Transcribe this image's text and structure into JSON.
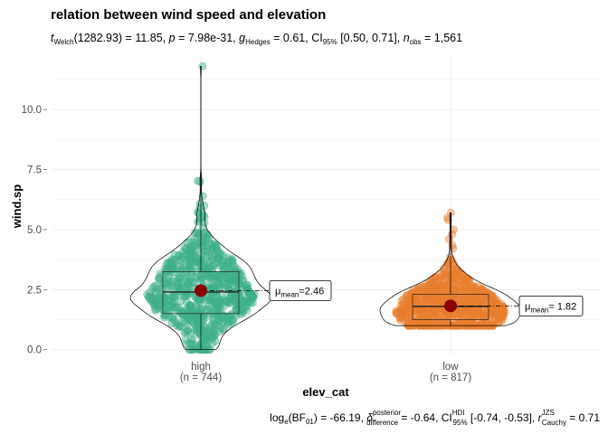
{
  "chart_data": {
    "type": "violin-box-scatter",
    "title": "relation between wind speed and elevation",
    "subtitle": {
      "t_prefix": "t",
      "t_sub": "Welch",
      "df_stat": "(1282.93) = 11.85, ",
      "p_label": "p",
      "p_value": " = 7.98e-31, ",
      "g_label": "g",
      "g_sub": "Hedges",
      "g_value": " = 0.61, CI",
      "ci_sub": "95%",
      "ci_value": " [0.50, 0.71], ",
      "n_label": "n",
      "n_sub": "obs",
      "n_value": " = 1,561"
    },
    "xlabel": "elev_cat",
    "ylabel": "wind.sp",
    "ylim": [
      -0.2,
      12.3
    ],
    "yticks": [
      0.0,
      2.5,
      5.0,
      7.5,
      10.0
    ],
    "ytick_labels": [
      "0.0",
      "2.5",
      "5.0",
      "7.5",
      "10.0"
    ],
    "grid": true,
    "categories": [
      {
        "name": "high",
        "n_label": "(n = 744)",
        "n": 744,
        "color": "#3fb08b",
        "box": {
          "q1": 1.5,
          "median": 2.4,
          "q3": 3.25,
          "whisker_low": 0.0,
          "whisker_high": 11.8
        },
        "mean": 2.46,
        "mean_label_prefix": "μ",
        "mean_label_sub": "mean",
        "mean_label_value": "=2.46",
        "outliers": [
          11.8,
          7.0,
          6.0,
          5.9,
          5.6,
          5.5
        ]
      },
      {
        "name": "low",
        "n_label": "(n = 817)",
        "n": 817,
        "color": "#e87f2e",
        "box": {
          "q1": 1.25,
          "median": 1.8,
          "q3": 2.3,
          "whisker_low": 1.0,
          "whisker_high": 5.7
        },
        "mean": 1.82,
        "mean_label_prefix": "μ",
        "mean_label_sub": "mean",
        "mean_label_value": "= 1.82",
        "outliers": [
          5.7,
          5.5,
          5.4,
          5.0,
          4.8,
          4.6
        ]
      }
    ],
    "mean_point_color": "#8b0000",
    "caption": {
      "bf_prefix": "log",
      "bf_sub1": "e",
      "bf_mid": "(BF",
      "bf_sub2": "01",
      "bf_value": ") = -66.19, ",
      "delta_label": "δ",
      "delta_sup": "posterior",
      "delta_sub": "difference",
      "delta_value": " = -0.64, CI",
      "ci_sup": "HDI",
      "ci_sub": "95%",
      "ci_value": " [-0.74, -0.53], ",
      "r_label": "r",
      "r_sup": "JZS",
      "r_sub": "Cauchy",
      "r_value": " = 0.71"
    }
  }
}
